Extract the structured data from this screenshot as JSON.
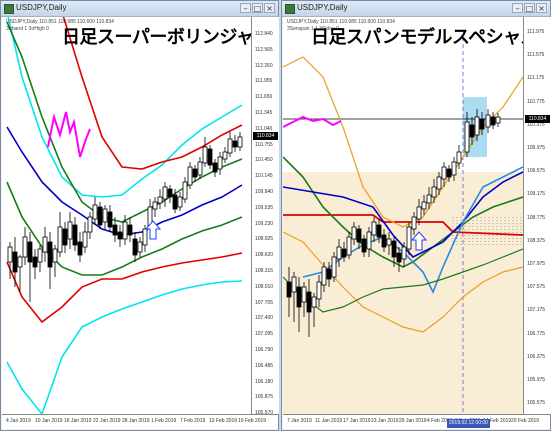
{
  "windows": [
    {
      "id": "left",
      "title": "USDJPY,Daily",
      "info_line1": "USDJPY,Daily  110.851 110.985 110.600 110.834",
      "info_line2": "3σband 1 3σHigh 0",
      "overlay_title": "日足スーパーボリンジャー",
      "current_price": "110.834",
      "y_labels": [
        "112.840",
        "112.565",
        "112.260",
        "111.955",
        "111.650",
        "111.345",
        "111.040",
        "110.755",
        "110.450",
        "110.145",
        "109.840",
        "109.535",
        "109.230",
        "108.925",
        "108.620",
        "108.315",
        "108.010",
        "107.705",
        "107.400",
        "107.095",
        "106.790",
        "106.485",
        "106.180",
        "105.875",
        "105.570"
      ],
      "x_labels": [
        "4 Jan 2019",
        "10 Jan 2019",
        "16 Jan 2019",
        "22 Jan 2019",
        "28 Jan 2019",
        "1 Feb 2019",
        "7 Feb 2019",
        "13 Feb 2019",
        "19 Feb 2019"
      ]
    },
    {
      "id": "right",
      "title": "USDJPY,Daily",
      "info_line1": "USDJPY,Daily  110.851 110.985 110.600 110.834",
      "info_line2": "3Senspan 1 1 3Sidou 0",
      "overlay_title": "日足スパンモデルスペシャル",
      "current_price": "110.834",
      "y_labels": [
        "111.975",
        "111.575",
        "111.175",
        "110.775",
        "110.375",
        "109.975",
        "109.575",
        "109.175",
        "108.775",
        "108.375",
        "107.975",
        "107.575",
        "107.175",
        "106.775",
        "106.375",
        "105.975",
        "105.575"
      ],
      "x_labels": [
        "7 Jan 2019",
        "11 Jan 2019",
        "17 Jan 2019",
        "23 Jan 2019",
        "29 Jan 2019",
        "4 Feb 2019",
        "8 Feb 2019",
        "14 Feb 2019",
        "20 Feb 2019"
      ],
      "date_badge": "2019.02.12 00:00"
    }
  ],
  "colors": {
    "bull": "#ffffff",
    "bear": "#000000",
    "sigma3": "#00e5ee",
    "sigma2": "#e00000",
    "sigma1": "#1a7a1a",
    "mid": "#0000c8",
    "chikou": "#ff00ff",
    "span_band": "#f5deb3",
    "span_gold": "#e8a020"
  }
}
